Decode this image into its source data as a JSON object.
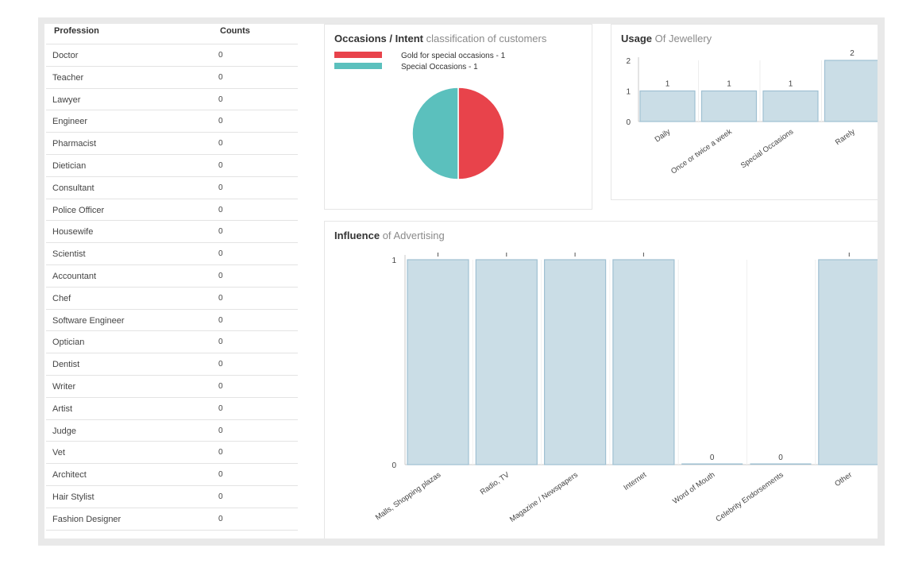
{
  "profession_table": {
    "headers": {
      "profession": "Profession",
      "counts": "Counts"
    },
    "rows": [
      {
        "name": "Doctor",
        "count": "0"
      },
      {
        "name": "Teacher",
        "count": "0"
      },
      {
        "name": "Lawyer",
        "count": "0"
      },
      {
        "name": "Engineer",
        "count": "0"
      },
      {
        "name": "Pharmacist",
        "count": "0"
      },
      {
        "name": "Dietician",
        "count": "0"
      },
      {
        "name": "Consultant",
        "count": "0"
      },
      {
        "name": "Police Officer",
        "count": "0"
      },
      {
        "name": "Housewife",
        "count": "0"
      },
      {
        "name": "Scientist",
        "count": "0"
      },
      {
        "name": "Accountant",
        "count": "0"
      },
      {
        "name": "Chef",
        "count": "0"
      },
      {
        "name": "Software Engineer",
        "count": "0"
      },
      {
        "name": "Optician",
        "count": "0"
      },
      {
        "name": "Dentist",
        "count": "0"
      },
      {
        "name": "Writer",
        "count": "0"
      },
      {
        "name": "Artist",
        "count": "0"
      },
      {
        "name": "Judge",
        "count": "0"
      },
      {
        "name": "Vet",
        "count": "0"
      },
      {
        "name": "Architect",
        "count": "0"
      },
      {
        "name": "Hair Stylist",
        "count": "0"
      },
      {
        "name": "Fashion Designer",
        "count": "0"
      }
    ]
  },
  "chart_data": [
    {
      "type": "pie",
      "title": "Occasions / Intent",
      "subtitle": "classification of customers",
      "slices": [
        {
          "label": "Gold for special occasions - 1",
          "value": 1,
          "color": "#e8434b"
        },
        {
          "label": "Special Occasions - 1",
          "value": 1,
          "color": "#5bc0bd"
        }
      ]
    },
    {
      "type": "bar",
      "title": "Usage",
      "subtitle": "Of Jewellery",
      "categories": [
        "Daily",
        "Once or twice a week",
        "Special Occasions",
        "Rarely"
      ],
      "values": [
        1,
        1,
        1,
        2
      ],
      "data_labels": [
        "1",
        "1",
        "1",
        "2"
      ],
      "ylim": [
        0,
        2
      ],
      "yticks": [
        "0",
        "1",
        "2"
      ],
      "bar_color": "#cadde6",
      "bar_stroke": "#9fc0d2"
    },
    {
      "type": "bar",
      "title": "Influence",
      "subtitle": "of Advertising",
      "categories": [
        "Malls, Shopping plazas",
        "Radio, TV",
        "Magazine / Newspapers",
        "Internet",
        "Word of Mouth",
        "Celebrity Endorsements",
        "Other"
      ],
      "values": [
        1,
        1,
        1,
        1,
        0,
        0,
        1
      ],
      "data_labels": [
        "",
        "",
        "",
        "",
        "0",
        "0",
        ""
      ],
      "ylim": [
        0,
        1
      ],
      "yticks": [
        "0",
        "1"
      ],
      "bar_color": "#cadde6",
      "bar_stroke": "#9fc0d2"
    }
  ]
}
